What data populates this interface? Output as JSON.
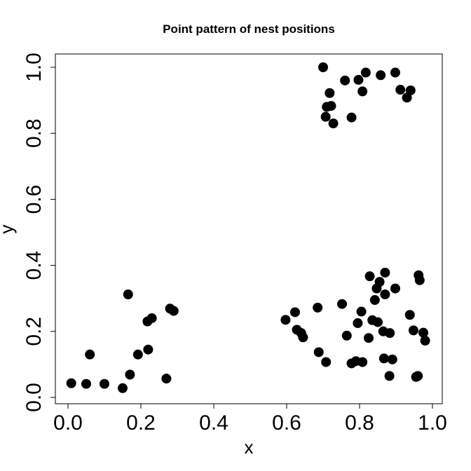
{
  "chart_data": {
    "type": "scatter",
    "title": "Point pattern of nest positions",
    "xlabel": "x",
    "ylabel": "y",
    "xlim": [
      0.0,
      1.0
    ],
    "ylim": [
      0.0,
      1.0
    ],
    "xticks": [
      "0.0",
      "0.2",
      "0.4",
      "0.6",
      "0.8",
      "1.0"
    ],
    "yticks": [
      "0.0",
      "0.2",
      "0.4",
      "0.6",
      "0.8",
      "1.0"
    ],
    "grid": false,
    "marker_color": "#000000",
    "points": [
      {
        "x": 0.009,
        "y": 0.043
      },
      {
        "x": 0.05,
        "y": 0.041
      },
      {
        "x": 0.06,
        "y": 0.13
      },
      {
        "x": 0.1,
        "y": 0.041
      },
      {
        "x": 0.15,
        "y": 0.028
      },
      {
        "x": 0.165,
        "y": 0.312
      },
      {
        "x": 0.17,
        "y": 0.069
      },
      {
        "x": 0.192,
        "y": 0.13
      },
      {
        "x": 0.218,
        "y": 0.23
      },
      {
        "x": 0.22,
        "y": 0.145
      },
      {
        "x": 0.23,
        "y": 0.24
      },
      {
        "x": 0.27,
        "y": 0.057
      },
      {
        "x": 0.28,
        "y": 0.269
      },
      {
        "x": 0.29,
        "y": 0.262
      },
      {
        "x": 0.597,
        "y": 0.235
      },
      {
        "x": 0.623,
        "y": 0.258
      },
      {
        "x": 0.628,
        "y": 0.205
      },
      {
        "x": 0.64,
        "y": 0.195
      },
      {
        "x": 0.645,
        "y": 0.182
      },
      {
        "x": 0.685,
        "y": 0.272
      },
      {
        "x": 0.688,
        "y": 0.137
      },
      {
        "x": 0.708,
        "y": 0.107
      },
      {
        "x": 0.752,
        "y": 0.283
      },
      {
        "x": 0.765,
        "y": 0.187
      },
      {
        "x": 0.778,
        "y": 0.103
      },
      {
        "x": 0.79,
        "y": 0.11
      },
      {
        "x": 0.795,
        "y": 0.225
      },
      {
        "x": 0.805,
        "y": 0.26
      },
      {
        "x": 0.808,
        "y": 0.107
      },
      {
        "x": 0.825,
        "y": 0.18
      },
      {
        "x": 0.828,
        "y": 0.367
      },
      {
        "x": 0.835,
        "y": 0.234
      },
      {
        "x": 0.842,
        "y": 0.295
      },
      {
        "x": 0.847,
        "y": 0.33
      },
      {
        "x": 0.85,
        "y": 0.228
      },
      {
        "x": 0.855,
        "y": 0.35
      },
      {
        "x": 0.865,
        "y": 0.2
      },
      {
        "x": 0.867,
        "y": 0.118
      },
      {
        "x": 0.87,
        "y": 0.378
      },
      {
        "x": 0.87,
        "y": 0.312
      },
      {
        "x": 0.882,
        "y": 0.065
      },
      {
        "x": 0.883,
        "y": 0.195
      },
      {
        "x": 0.89,
        "y": 0.115
      },
      {
        "x": 0.898,
        "y": 0.33
      },
      {
        "x": 0.938,
        "y": 0.25
      },
      {
        "x": 0.948,
        "y": 0.203
      },
      {
        "x": 0.955,
        "y": 0.062
      },
      {
        "x": 0.96,
        "y": 0.065
      },
      {
        "x": 0.962,
        "y": 0.37
      },
      {
        "x": 0.965,
        "y": 0.355
      },
      {
        "x": 0.975,
        "y": 0.196
      },
      {
        "x": 0.98,
        "y": 0.172
      },
      {
        "x": 0.7,
        "y": 1.0
      },
      {
        "x": 0.707,
        "y": 0.85
      },
      {
        "x": 0.71,
        "y": 0.88
      },
      {
        "x": 0.718,
        "y": 0.922
      },
      {
        "x": 0.722,
        "y": 0.883
      },
      {
        "x": 0.728,
        "y": 0.83
      },
      {
        "x": 0.76,
        "y": 0.96
      },
      {
        "x": 0.778,
        "y": 0.848
      },
      {
        "x": 0.797,
        "y": 0.962
      },
      {
        "x": 0.808,
        "y": 0.927
      },
      {
        "x": 0.817,
        "y": 0.984
      },
      {
        "x": 0.858,
        "y": 0.976
      },
      {
        "x": 0.898,
        "y": 0.984
      },
      {
        "x": 0.912,
        "y": 0.932
      },
      {
        "x": 0.93,
        "y": 0.908
      },
      {
        "x": 0.94,
        "y": 0.93
      }
    ]
  }
}
